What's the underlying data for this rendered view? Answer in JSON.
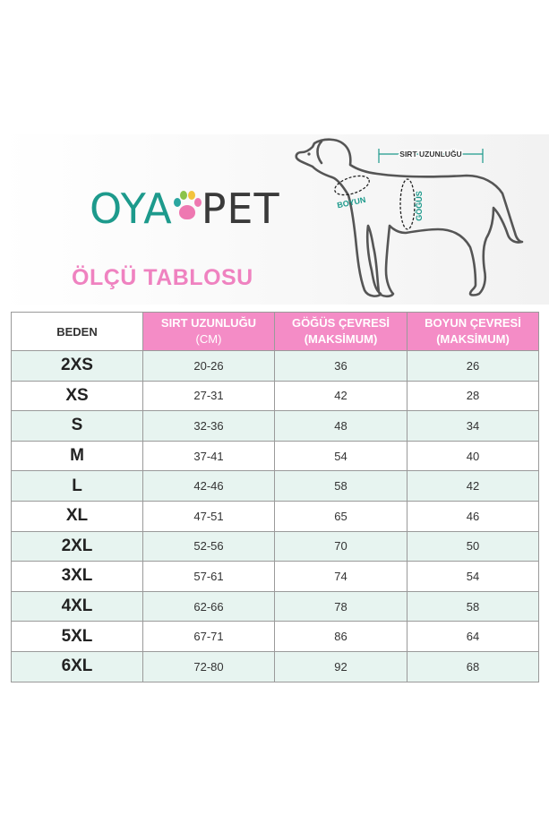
{
  "brand": {
    "part1": "OYA",
    "part2": "PET"
  },
  "title": "ÖLÇÜ TABLOSU",
  "diagram": {
    "back_label": "SIRT UZUNLUĞU",
    "neck_label": "BOYUN",
    "chest_label": "GÖĞÜS"
  },
  "table": {
    "headers": {
      "size": "BEDEN",
      "back_line1": "SIRT UZUNLUĞU",
      "back_line2": "(CM)",
      "chest_line1": "GÖĞÜS ÇEVRESİ",
      "chest_line2": "(MAKSİMUM)",
      "neck_line1": "BOYUN ÇEVRESİ",
      "neck_line2": "(MAKSİMUM)"
    },
    "rows": [
      {
        "size": "2XS",
        "back": "20-26",
        "chest": "36",
        "neck": "26"
      },
      {
        "size": "XS",
        "back": "27-31",
        "chest": "42",
        "neck": "28"
      },
      {
        "size": "S",
        "back": "32-36",
        "chest": "48",
        "neck": "34"
      },
      {
        "size": "M",
        "back": "37-41",
        "chest": "54",
        "neck": "40"
      },
      {
        "size": "L",
        "back": "42-46",
        "chest": "58",
        "neck": "42"
      },
      {
        "size": "XL",
        "back": "47-51",
        "chest": "65",
        "neck": "46"
      },
      {
        "size": "2XL",
        "back": "52-56",
        "chest": "70",
        "neck": "50"
      },
      {
        "size": "3XL",
        "back": "57-61",
        "chest": "74",
        "neck": "54"
      },
      {
        "size": "4XL",
        "back": "62-66",
        "chest": "78",
        "neck": "58"
      },
      {
        "size": "5XL",
        "back": "67-71",
        "chest": "86",
        "neck": "64"
      },
      {
        "size": "6XL",
        "back": "72-80",
        "chest": "92",
        "neck": "68"
      }
    ]
  },
  "colors": {
    "brand_teal": "#1d9a8c",
    "brand_pink": "#f48cc6",
    "row_mint": "#e7f4f0"
  }
}
